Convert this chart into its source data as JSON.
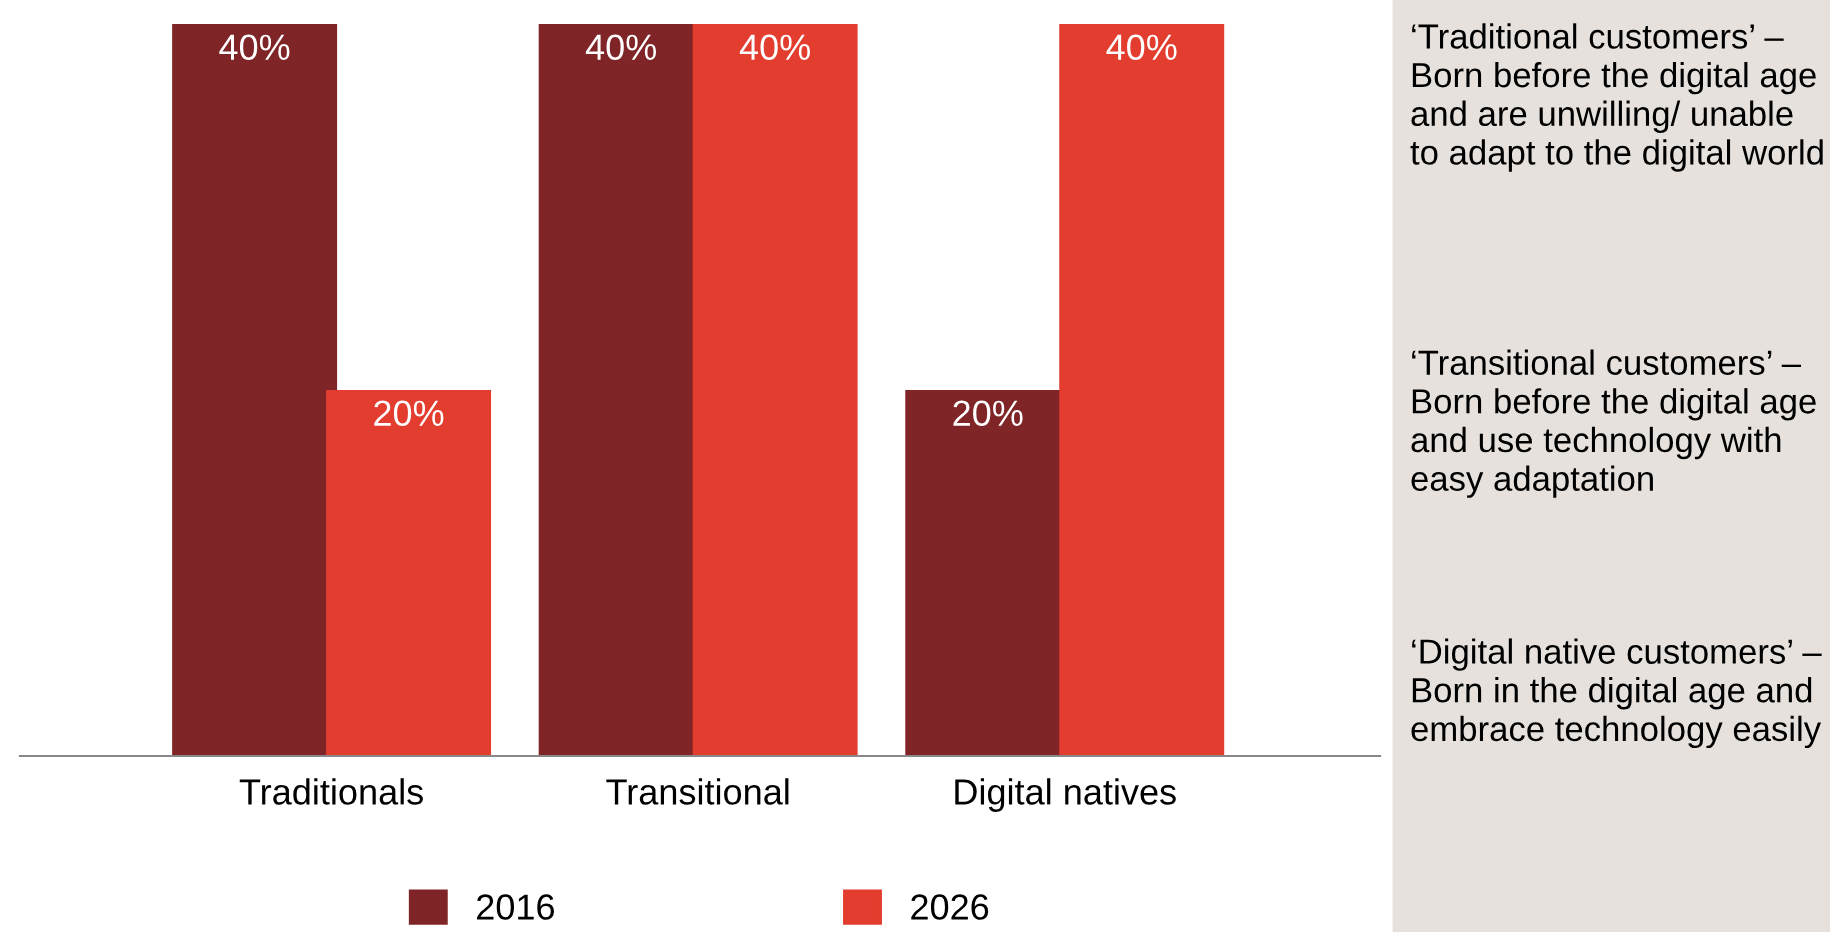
{
  "chart_data": {
    "type": "bar",
    "categories": [
      "Traditionals",
      "Transitional",
      "Digital natives"
    ],
    "series": [
      {
        "name": "2016",
        "color": "#7f2427",
        "values": [
          40,
          40,
          20
        ],
        "value_labels": [
          "40%",
          "40%",
          "20%"
        ]
      },
      {
        "name": "2026",
        "color": "#e23d2e",
        "values": [
          20,
          40,
          40
        ],
        "value_labels": [
          "20%",
          "40%",
          "40%"
        ]
      }
    ],
    "legend": "bottom",
    "annotations": [
      "‘Traditional customers’ – Born before the digital age and are unwilling/ unable to adapt to the digital world",
      "‘Transitional customers’ – Born before the digital age and use technology with easy adaptation",
      "‘Digital native customers’ – Born in the digital age and embrace technology easily"
    ]
  }
}
